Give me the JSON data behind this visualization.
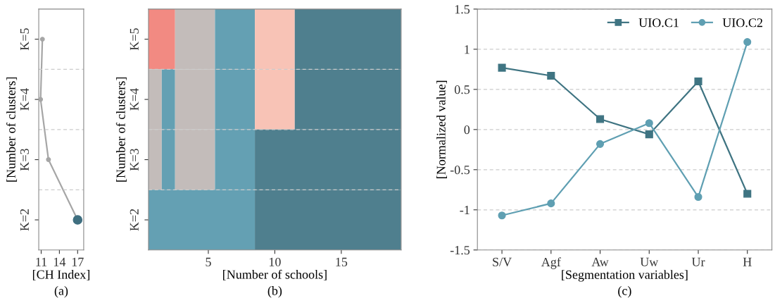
{
  "chart_data": [
    {
      "type": "line",
      "orientation": "horizontal",
      "categories": [
        "K=5",
        "K=4",
        "K=3",
        "K=2"
      ],
      "xlabel": "[CH Index]",
      "ylabel": "[Number of clusters]",
      "xlim": [
        10.6,
        18
      ],
      "xticks": [
        11,
        14,
        17
      ],
      "grid": "y",
      "annotations": [
        "(a)"
      ],
      "series": [
        {
          "color": "#a6a6a6",
          "colors": [
            "#a6a6a6",
            "#a6a6a6",
            "#a6a6a6",
            "#3f6f80"
          ],
          "marker": "circle",
          "values": [
            11.2,
            10.9,
            12.2,
            17.0
          ]
        }
      ]
    },
    {
      "type": "bar",
      "orientation": "horizontal",
      "categories": [
        "K=5",
        "K=4",
        "K=3",
        "K=2"
      ],
      "xlabel": "[Number of schools]",
      "ylabel": "[Number of clusters]",
      "xlim": [
        0.5,
        19.5
      ],
      "xticks": [
        5,
        10,
        15
      ],
      "grid": "y",
      "annotations": [
        "(b)"
      ],
      "series": [
        {
          "base": [
            0.5,
            0.5,
            0.5,
            0.5
          ],
          "values": [
            2,
            1,
            1,
            8
          ],
          "colors": [
            "#f28a82",
            "#c3bcba",
            "#c3bcba",
            "#64a0b3"
          ]
        },
        {
          "base": [
            2.5,
            1.5,
            1.5,
            8.5
          ],
          "values": [
            3,
            1,
            1,
            11
          ],
          "colors": [
            "#c3bcba",
            "#64a0b3",
            "#64a0b3",
            "#4f7f8e"
          ]
        },
        {
          "base": [
            5.5,
            2.5,
            2.5,
            null
          ],
          "values": [
            3,
            3,
            3,
            null
          ],
          "colors": [
            "#64a0b3",
            "#c3bcba",
            "#c3bcba",
            null
          ]
        },
        {
          "base": [
            8.5,
            5.5,
            5.5,
            null
          ],
          "values": [
            3,
            3,
            3,
            null
          ],
          "colors": [
            "#f8c3b6",
            "#64a0b3",
            "#64a0b3",
            null
          ]
        },
        {
          "base": [
            11.5,
            8.5,
            8.5,
            null
          ],
          "values": [
            8,
            3,
            11,
            null
          ],
          "colors": [
            "#4f7f8e",
            "#f8c3b6",
            "#4f7f8e",
            null
          ]
        },
        {
          "base": [
            null,
            11.5,
            null,
            null
          ],
          "values": [
            null,
            8,
            null,
            null
          ],
          "colors": [
            null,
            "#4f7f8e",
            null,
            null
          ]
        }
      ]
    },
    {
      "type": "line",
      "categories": [
        "S/V",
        "Agf",
        "Aw",
        "Uw",
        "Ur",
        "H"
      ],
      "xlabel": "[Segmentation variables]",
      "ylabel": "[Normalized value]",
      "ylim": [
        -1.5,
        1.5
      ],
      "yticks": [
        -1.5,
        -1,
        -0.5,
        0,
        0.5,
        1,
        1.5
      ],
      "grid": "y",
      "legend": "top right",
      "annotations": [
        "(c)"
      ],
      "series": [
        {
          "name": "UIO.C1",
          "color": "#3f7482",
          "marker": "square",
          "values": [
            0.77,
            0.67,
            0.13,
            -0.06,
            0.6,
            -0.8
          ]
        },
        {
          "name": "UIO.C2",
          "color": "#5f9fb2",
          "marker": "circle",
          "values": [
            -1.07,
            -0.92,
            -0.18,
            0.08,
            -0.84,
            1.09
          ]
        }
      ]
    }
  ]
}
